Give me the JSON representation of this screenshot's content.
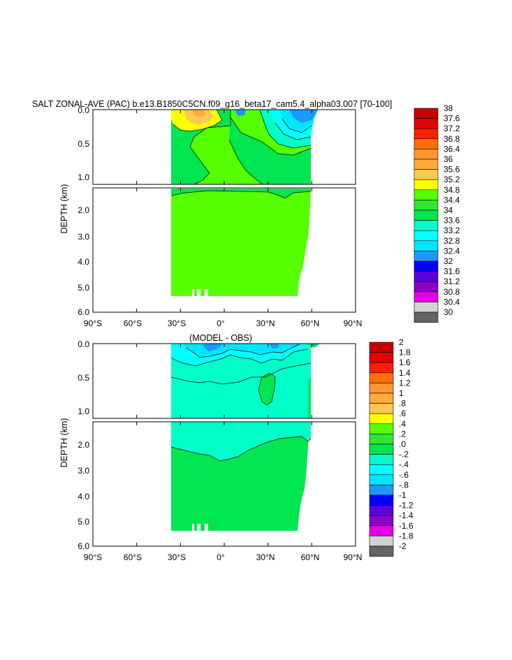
{
  "chart_data": [
    {
      "type": "heatmap",
      "subtype": "filled-contour depth-latitude section",
      "title": "SALT ZONAL-AVE (PAC) b.e13.B1850C5CN.f09_g16_beta17_cam5.4_alpha03.007 [70-100]",
      "ylabel": "DEPTH (km)",
      "xlabel": "",
      "x_ticks": [
        "90°S",
        "60°S",
        "30°S",
        "0°",
        "30°N",
        "60°N",
        "90°N"
      ],
      "x_tick_values": [
        -90,
        -60,
        -30,
        0,
        30,
        60,
        90
      ],
      "xlim": [
        -90,
        90
      ],
      "y_ticks_upper": [
        "0.0",
        "0.5",
        "1.0"
      ],
      "y_ticks_lower": [
        "2.0",
        "3.0",
        "4.0",
        "5.0",
        "6.0"
      ],
      "ylim_upper": [
        0,
        1.1
      ],
      "ylim_lower": [
        1.2,
        6.0
      ],
      "data_extent": {
        "lat_min": -34,
        "lat_max": 62,
        "max_depth_km": 5.4
      },
      "colorbar_levels": [
        "38",
        "37.6",
        "37.2",
        "36.8",
        "36.4",
        "36",
        "35.6",
        "35.2",
        "34.8",
        "34.4",
        "34",
        "33.6",
        "33.2",
        "32.8",
        "32.4",
        "32",
        "31.6",
        "31.2",
        "30.8",
        "30.4",
        "30"
      ],
      "colorbar_colors": [
        "#c80000",
        "#e60000",
        "#ff1e00",
        "#ff6e00",
        "#ff9632",
        "#ffaa3c",
        "#ffc850",
        "#ffff00",
        "#55ff00",
        "#32e632",
        "#00e650",
        "#00ffc8",
        "#00ffff",
        "#00e6ff",
        "#1e96ff",
        "#0000ff",
        "#5a00dc",
        "#8c00c8",
        "#e600e6",
        "#d2d2d2",
        "#646464"
      ],
      "dominant_level": "34.4 to 34.8",
      "dominant_color": "#55ff00"
    },
    {
      "type": "heatmap",
      "subtype": "filled-contour depth-latitude section",
      "title": "(MODEL - OBS)",
      "ylabel": "DEPTH (km)",
      "xlabel": "",
      "x_ticks": [
        "90°S",
        "60°S",
        "30°S",
        "0°",
        "30°N",
        "60°N",
        "90°N"
      ],
      "x_tick_values": [
        -90,
        -60,
        -30,
        0,
        30,
        60,
        90
      ],
      "xlim": [
        -90,
        90
      ],
      "y_ticks_upper": [
        "0.0",
        "0.5",
        "1.0"
      ],
      "y_ticks_lower": [
        "2.0",
        "3.0",
        "4.0",
        "5.0",
        "6.0"
      ],
      "ylim_upper": [
        0,
        1.1
      ],
      "ylim_lower": [
        1.2,
        6.0
      ],
      "data_extent": {
        "lat_min": -34,
        "lat_max": 62,
        "max_depth_km": 5.4
      },
      "colorbar_levels": [
        "2",
        "1.8",
        "1.6",
        "1.4",
        "1.2",
        "1",
        ".8",
        ".6",
        ".4",
        ".2",
        ".0",
        "-.2",
        "-.4",
        "-.6",
        "-.8",
        "-1",
        "-1.2",
        "-1.4",
        "-1.6",
        "-1.8",
        "-2"
      ],
      "colorbar_colors": [
        "#c80000",
        "#e60000",
        "#ff1e00",
        "#ff6e00",
        "#ff9632",
        "#ffaa3c",
        "#ffc850",
        "#ffff00",
        "#55ff00",
        "#32e632",
        "#00e650",
        "#00ffc8",
        "#00ffff",
        "#00e6ff",
        "#1e96ff",
        "#0000ff",
        "#5a00dc",
        "#8c00c8",
        "#e600e6",
        "#d2d2d2",
        "#646464"
      ],
      "dominant_levels": [
        "-.2 to .0",
        ".0 to .2"
      ]
    }
  ]
}
